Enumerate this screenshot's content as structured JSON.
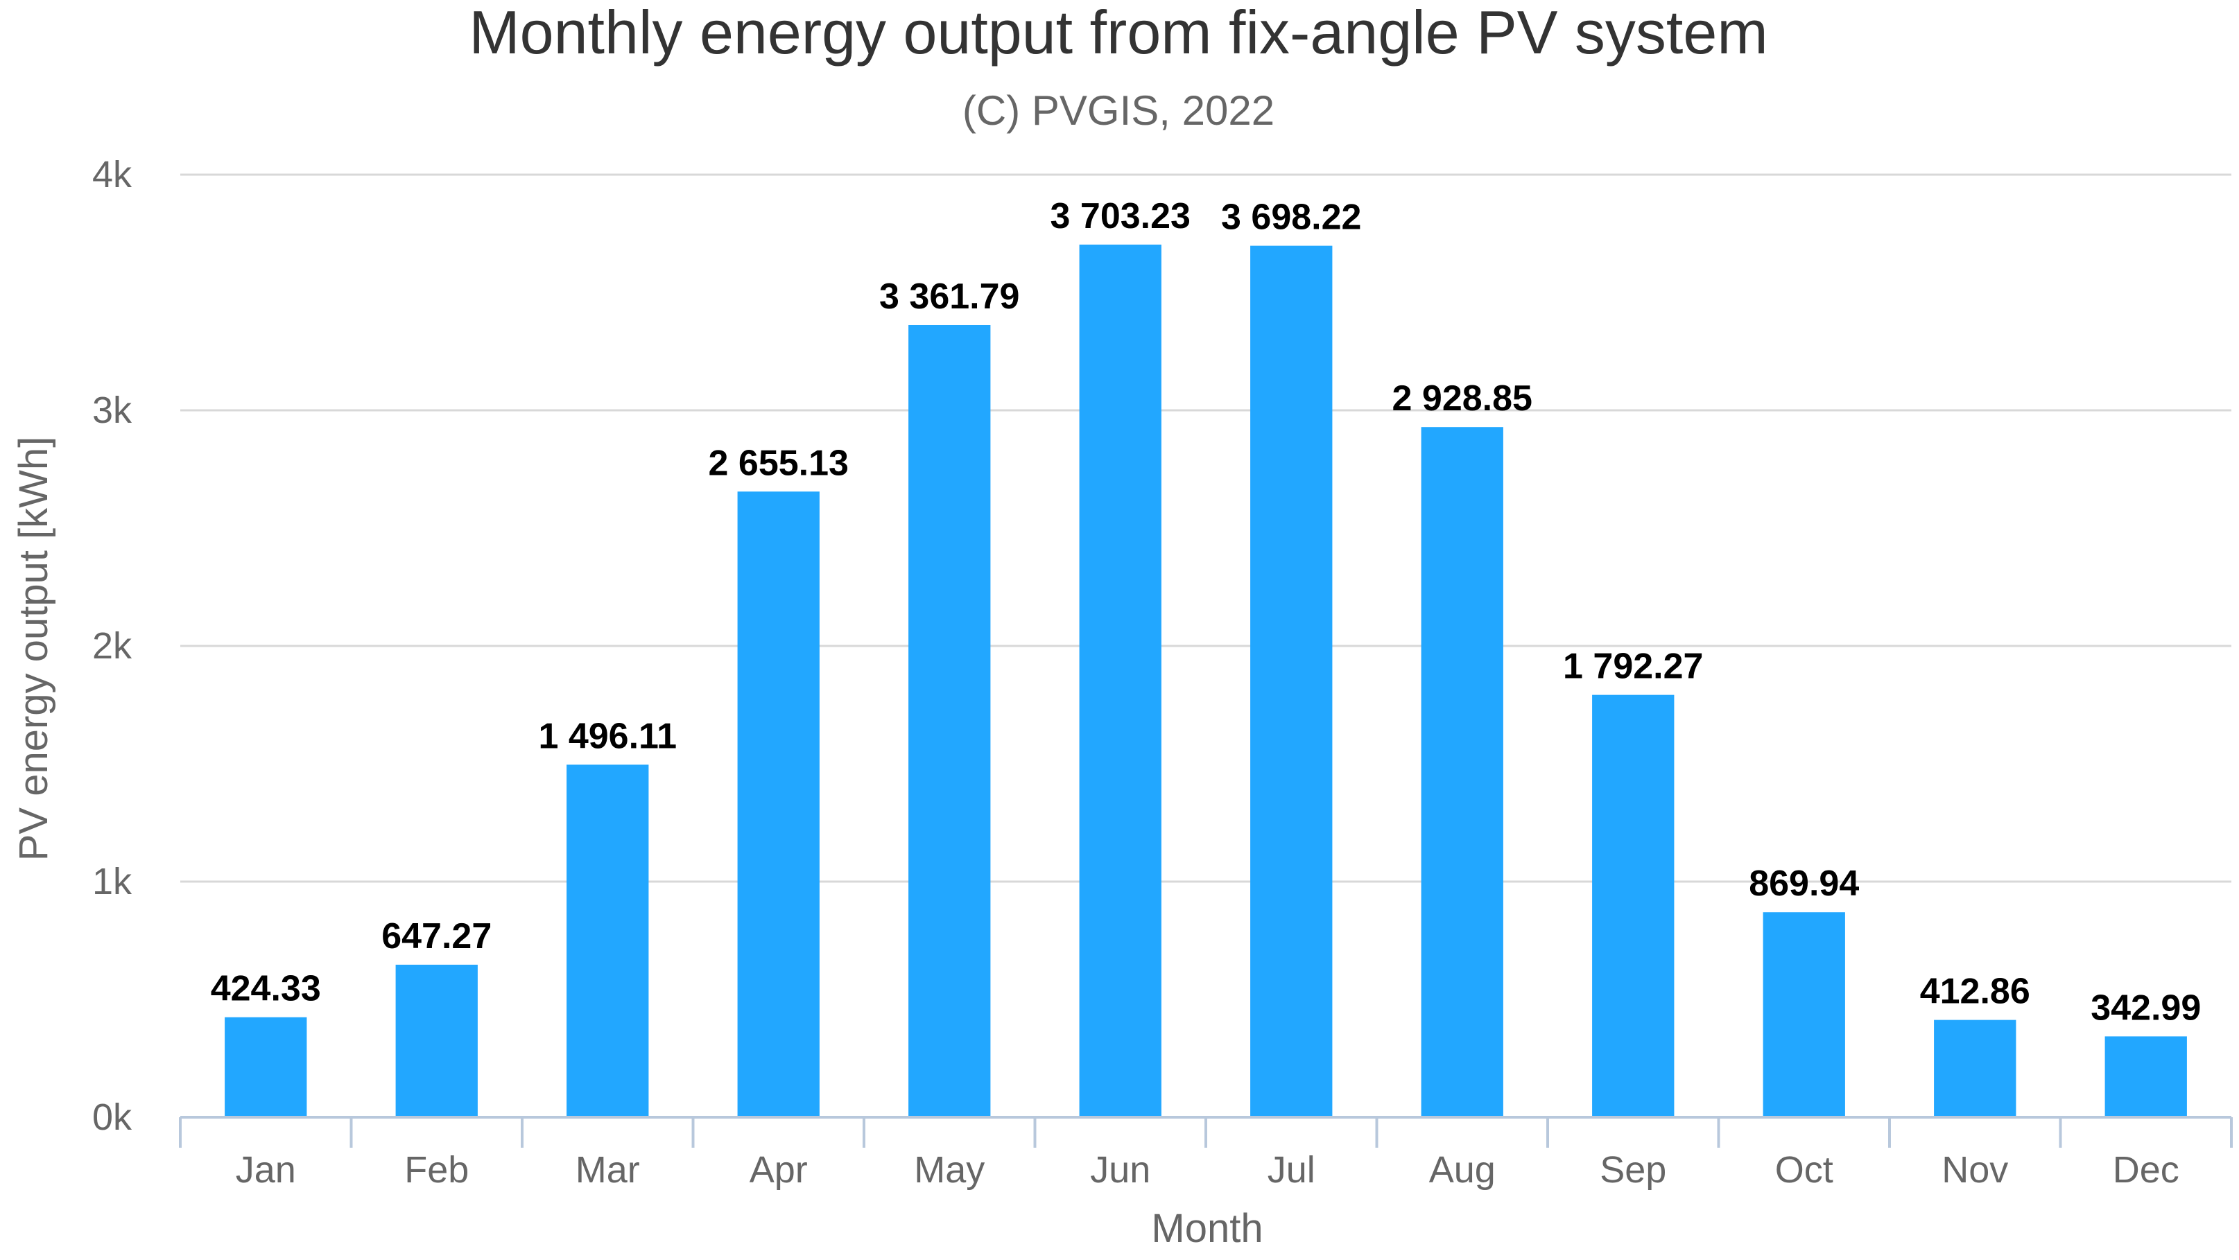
{
  "chart_data": {
    "type": "bar",
    "title": "Monthly energy output from fix-angle PV system",
    "subtitle": "(C) PVGIS, 2022",
    "xlabel": "Month",
    "ylabel": "PV energy output [kWh]",
    "categories": [
      "Jan",
      "Feb",
      "Mar",
      "Apr",
      "May",
      "Jun",
      "Jul",
      "Aug",
      "Sep",
      "Oct",
      "Nov",
      "Dec"
    ],
    "values": [
      424.33,
      647.27,
      1496.11,
      2655.13,
      3361.79,
      3703.23,
      3698.22,
      2928.85,
      1792.27,
      869.94,
      412.86,
      342.99
    ],
    "data_labels": [
      "424.33",
      "647.27",
      "1 496.11",
      "2 655.13",
      "3 361.79",
      "3 703.23",
      "3 698.22",
      "2 928.85",
      "1 792.27",
      "869.94",
      "412.86",
      "342.99"
    ],
    "yticks": [
      0,
      1000,
      2000,
      3000,
      4000
    ],
    "ytick_labels": [
      "0k",
      "1k",
      "2k",
      "3k",
      "4k"
    ],
    "ylim": [
      0,
      4000
    ],
    "grid": true,
    "legend": "none",
    "bar_color": "#22a7ff"
  }
}
